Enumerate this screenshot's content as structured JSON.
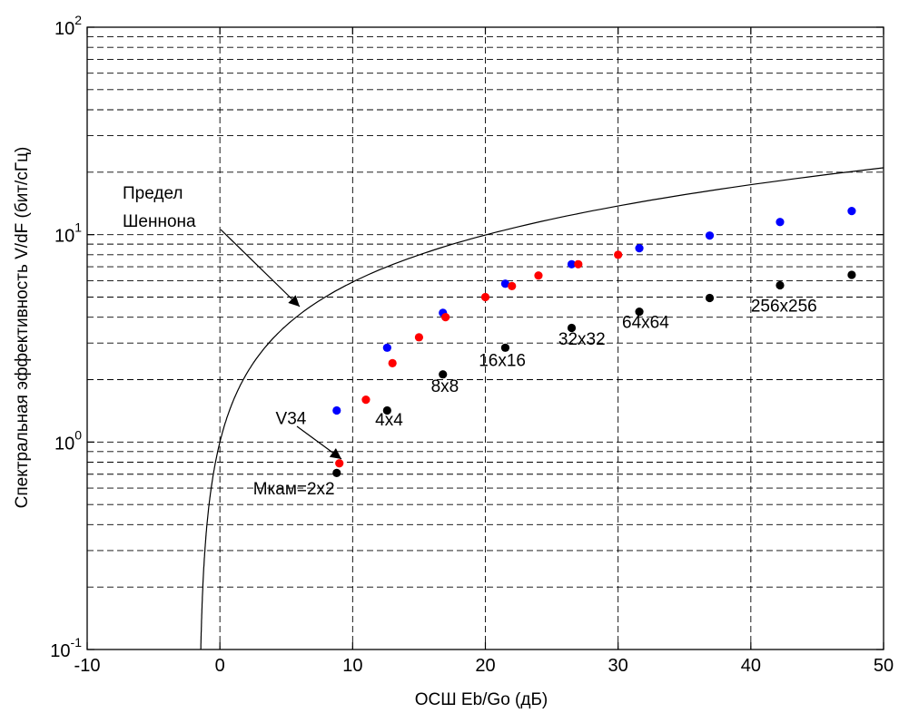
{
  "chart_data": {
    "type": "scatter",
    "xlabel": "ОСШ  Eb/Go  (дБ)",
    "ylabel": "Спектральная эффективность V/dF (бит/сГц)",
    "xlim": [
      -10,
      50
    ],
    "ylim": [
      0.1,
      100
    ],
    "yscale": "log",
    "grid": true,
    "x_ticks": [
      "-10",
      "0",
      "10",
      "20",
      "30",
      "40",
      "50"
    ],
    "y_ticks": [
      {
        "base": "10",
        "exp": "-1",
        "value": 0.1
      },
      {
        "base": "10",
        "exp": "0",
        "value": 1
      },
      {
        "base": "10",
        "exp": "1",
        "value": 10
      },
      {
        "base": "10",
        "exp": "2",
        "value": 100
      }
    ],
    "series": [
      {
        "color": "#0000ff",
        "points": [
          {
            "x": 8.8,
            "y": 1.42
          },
          {
            "x": 12.6,
            "y": 2.85
          },
          {
            "x": 16.8,
            "y": 4.2
          },
          {
            "x": 21.5,
            "y": 5.8
          },
          {
            "x": 26.5,
            "y": 7.2
          },
          {
            "x": 31.6,
            "y": 8.6
          },
          {
            "x": 36.9,
            "y": 9.9
          },
          {
            "x": 42.2,
            "y": 11.5
          },
          {
            "x": 47.6,
            "y": 13.0
          }
        ]
      },
      {
        "color": "#ff0000",
        "points": [
          {
            "x": 9.0,
            "y": 0.79
          },
          {
            "x": 11.0,
            "y": 1.6
          },
          {
            "x": 13.0,
            "y": 2.4
          },
          {
            "x": 15.0,
            "y": 3.2
          },
          {
            "x": 17.0,
            "y": 4.0
          },
          {
            "x": 20.0,
            "y": 5.0
          },
          {
            "x": 22.0,
            "y": 5.65
          },
          {
            "x": 24.0,
            "y": 6.35
          },
          {
            "x": 27.0,
            "y": 7.2
          },
          {
            "x": 30.0,
            "y": 8.0
          }
        ]
      },
      {
        "color": "#000000",
        "points": [
          {
            "x": 8.8,
            "y": 0.71
          },
          {
            "x": 12.6,
            "y": 1.42
          },
          {
            "x": 16.8,
            "y": 2.12
          },
          {
            "x": 21.5,
            "y": 2.85
          },
          {
            "x": 26.5,
            "y": 3.55
          },
          {
            "x": 31.6,
            "y": 4.25
          },
          {
            "x": 36.9,
            "y": 4.95
          },
          {
            "x": 42.2,
            "y": 5.7
          },
          {
            "x": 47.6,
            "y": 6.4
          }
        ]
      }
    ],
    "shannon_limit": {
      "label_line1": "Предел",
      "label_line2": "Шеннона"
    },
    "annotations": [
      {
        "text": "V34",
        "x": 4.2,
        "y": 1.22
      },
      {
        "text": "Mкам=2x2",
        "x": 2.5,
        "y": 0.56
      },
      {
        "text": "4x4",
        "x": 11.7,
        "y": 1.2
      },
      {
        "text": "8x8",
        "x": 15.9,
        "y": 1.75
      },
      {
        "text": "16x16",
        "x": 19.5,
        "y": 2.33
      },
      {
        "text": "32x32",
        "x": 25.5,
        "y": 2.95
      },
      {
        "text": "64x64",
        "x": 30.3,
        "y": 3.55
      },
      {
        "text": "256x256",
        "x": 40.0,
        "y": 4.25
      }
    ]
  }
}
